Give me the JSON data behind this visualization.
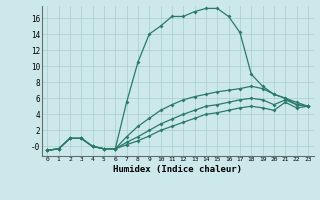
{
  "xlabel": "Humidex (Indice chaleur)",
  "xlim": [
    -0.5,
    23.5
  ],
  "ylim": [
    -1.2,
    17.5
  ],
  "xticks": [
    0,
    1,
    2,
    3,
    4,
    5,
    6,
    7,
    8,
    9,
    10,
    11,
    12,
    13,
    14,
    15,
    16,
    17,
    18,
    19,
    20,
    21,
    22,
    23
  ],
  "yticks": [
    0,
    2,
    4,
    6,
    8,
    10,
    12,
    14,
    16
  ],
  "ytick_labels": [
    "-0",
    "2",
    "4",
    "6",
    "8",
    "10",
    "12",
    "14",
    "16"
  ],
  "background_color": "#cde8ea",
  "grid_color": "#aacdd0",
  "line_color": "#2a7a6a",
  "line1_x": [
    0,
    1,
    2,
    3,
    4,
    5,
    6,
    7,
    8,
    9,
    10,
    11,
    12,
    13,
    14,
    15,
    16,
    17,
    18,
    19,
    20,
    21,
    22,
    23
  ],
  "line1_y": [
    -0.5,
    -0.3,
    1.0,
    1.0,
    0.0,
    -0.3,
    -0.3,
    5.5,
    10.5,
    14.0,
    15.0,
    16.2,
    16.2,
    16.8,
    17.2,
    17.2,
    16.2,
    14.2,
    9.0,
    7.5,
    6.5,
    6.0,
    5.2,
    5.0
  ],
  "line2_x": [
    0,
    1,
    2,
    3,
    4,
    5,
    6,
    7,
    8,
    9,
    10,
    11,
    12,
    13,
    14,
    15,
    16,
    17,
    18,
    19,
    20,
    21,
    22,
    23
  ],
  "line2_y": [
    -0.5,
    -0.3,
    1.0,
    1.0,
    0.0,
    -0.3,
    -0.3,
    1.2,
    2.5,
    3.5,
    4.5,
    5.2,
    5.8,
    6.2,
    6.5,
    6.8,
    7.0,
    7.2,
    7.5,
    7.2,
    6.5,
    6.0,
    5.5,
    5.0
  ],
  "line3_x": [
    0,
    1,
    2,
    3,
    4,
    5,
    6,
    7,
    8,
    9,
    10,
    11,
    12,
    13,
    14,
    15,
    16,
    17,
    18,
    19,
    20,
    21,
    22,
    23
  ],
  "line3_y": [
    -0.5,
    -0.3,
    1.0,
    1.0,
    0.0,
    -0.3,
    -0.3,
    0.5,
    1.2,
    2.0,
    2.8,
    3.4,
    4.0,
    4.5,
    5.0,
    5.2,
    5.5,
    5.8,
    6.0,
    5.8,
    5.2,
    5.8,
    5.2,
    5.0
  ],
  "line4_x": [
    0,
    1,
    2,
    3,
    4,
    5,
    6,
    7,
    8,
    9,
    10,
    11,
    12,
    13,
    14,
    15,
    16,
    17,
    18,
    19,
    20,
    21,
    22,
    23
  ],
  "line4_y": [
    -0.5,
    -0.3,
    1.0,
    1.0,
    0.0,
    -0.3,
    -0.3,
    0.2,
    0.7,
    1.3,
    2.0,
    2.5,
    3.0,
    3.5,
    4.0,
    4.2,
    4.5,
    4.8,
    5.0,
    4.8,
    4.5,
    5.5,
    4.8,
    5.0
  ]
}
